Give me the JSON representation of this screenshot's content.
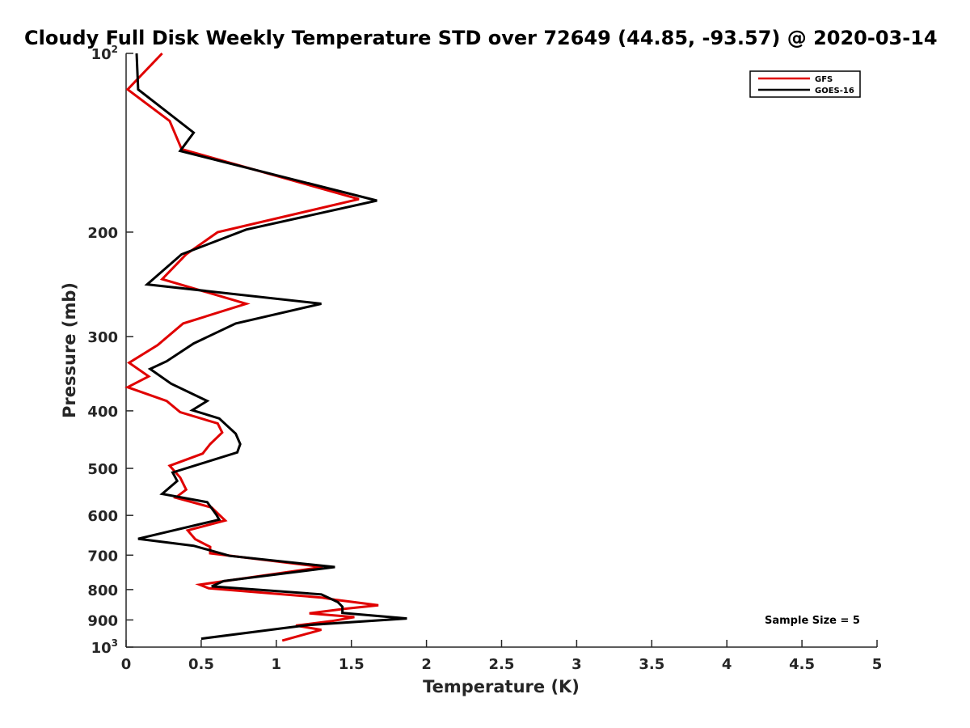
{
  "chart_data": {
    "type": "line",
    "title": "Cloudy Full Disk Weekly Temperature STD over 72649 (44.85, -93.57) @ 2020-03-14",
    "xlabel": "Temperature (K)",
    "ylabel": "Pressure (mb)",
    "xlim": [
      0,
      5
    ],
    "ylim": [
      100,
      1000
    ],
    "y_scale": "log",
    "y_reversed": true,
    "grid": false,
    "legend_position": "top-right",
    "x_ticks": [
      0,
      0.5,
      1,
      1.5,
      2,
      2.5,
      3,
      3.5,
      4,
      4.5,
      5
    ],
    "x_tick_labels": [
      "0",
      "0.5",
      "1",
      "1.5",
      "2",
      "2.5",
      "3",
      "3.5",
      "4",
      "4.5",
      "5"
    ],
    "y_ticks": [
      {
        "value": 100,
        "base": "10",
        "sup": "2"
      },
      {
        "value": 200,
        "base": "200",
        "sup": ""
      },
      {
        "value": 300,
        "base": "300",
        "sup": ""
      },
      {
        "value": 400,
        "base": "400",
        "sup": ""
      },
      {
        "value": 500,
        "base": "500",
        "sup": ""
      },
      {
        "value": 600,
        "base": "600",
        "sup": ""
      },
      {
        "value": 700,
        "base": "700",
        "sup": ""
      },
      {
        "value": 800,
        "base": "800",
        "sup": ""
      },
      {
        "value": 900,
        "base": "900",
        "sup": ""
      },
      {
        "value": 1000,
        "base": "10",
        "sup": "3"
      }
    ],
    "annotation": "Sample Size = 5",
    "series": [
      {
        "name": "GFS",
        "color": "#e00000",
        "points": [
          [
            0.24,
            100
          ],
          [
            0.01,
            115
          ],
          [
            0.29,
            130
          ],
          [
            0.37,
            145
          ],
          [
            1.55,
            176
          ],
          [
            0.61,
            200
          ],
          [
            0.4,
            218
          ],
          [
            0.24,
            240
          ],
          [
            0.8,
            264
          ],
          [
            0.38,
            285
          ],
          [
            0.21,
            310
          ],
          [
            0.02,
            332
          ],
          [
            0.15,
            350
          ],
          [
            0.01,
            365
          ],
          [
            0.27,
            385
          ],
          [
            0.36,
            402
          ],
          [
            0.61,
            420
          ],
          [
            0.64,
            435
          ],
          [
            0.56,
            455
          ],
          [
            0.51,
            472
          ],
          [
            0.29,
            495
          ],
          [
            0.36,
            518
          ],
          [
            0.4,
            543
          ],
          [
            0.33,
            560
          ],
          [
            0.57,
            582
          ],
          [
            0.66,
            612
          ],
          [
            0.41,
            636
          ],
          [
            0.46,
            658
          ],
          [
            0.56,
            678
          ],
          [
            0.56,
            695
          ],
          [
            1.31,
            733
          ],
          [
            0.49,
            785
          ],
          [
            0.55,
            796
          ],
          [
            1.3,
            825
          ],
          [
            1.39,
            832
          ],
          [
            1.68,
            850
          ],
          [
            1.45,
            862
          ],
          [
            1.22,
            877
          ],
          [
            1.52,
            890
          ],
          [
            1.37,
            904
          ],
          [
            1.13,
            920
          ],
          [
            1.3,
            935
          ],
          [
            1.04,
            975
          ]
        ]
      },
      {
        "name": "GOES-16",
        "color": "#000000",
        "points": [
          [
            0.07,
            100
          ],
          [
            0.08,
            115
          ],
          [
            0.45,
            136
          ],
          [
            0.36,
            146
          ],
          [
            1.67,
            177
          ],
          [
            0.8,
            198
          ],
          [
            0.37,
            218
          ],
          [
            0.14,
            245
          ],
          [
            1.3,
            264
          ],
          [
            0.73,
            285
          ],
          [
            0.45,
            308
          ],
          [
            0.27,
            330
          ],
          [
            0.16,
            340
          ],
          [
            0.3,
            360
          ],
          [
            0.54,
            385
          ],
          [
            0.44,
            399
          ],
          [
            0.62,
            412
          ],
          [
            0.73,
            437
          ],
          [
            0.76,
            455
          ],
          [
            0.74,
            470
          ],
          [
            0.51,
            490
          ],
          [
            0.31,
            508
          ],
          [
            0.34,
            525
          ],
          [
            0.24,
            552
          ],
          [
            0.54,
            570
          ],
          [
            0.6,
            598
          ],
          [
            0.62,
            610
          ],
          [
            0.08,
            657
          ],
          [
            0.45,
            675
          ],
          [
            0.69,
            702
          ],
          [
            1.39,
            733
          ],
          [
            0.65,
            774
          ],
          [
            0.57,
            790
          ],
          [
            1.3,
            815
          ],
          [
            1.41,
            840
          ],
          [
            1.44,
            855
          ],
          [
            1.44,
            876
          ],
          [
            1.87,
            895
          ],
          [
            1.21,
            918
          ],
          [
            1.05,
            929
          ],
          [
            0.5,
            968
          ]
        ]
      }
    ]
  }
}
